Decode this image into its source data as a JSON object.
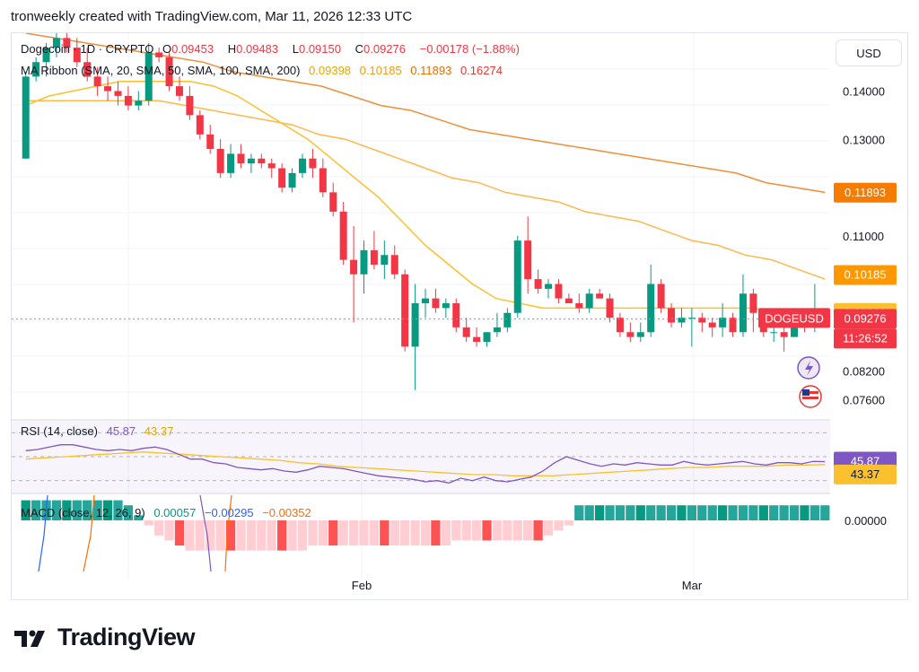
{
  "header": "tronweekly created with TradingView.com, Mar 11, 2026 12:33 UTC",
  "legend": {
    "symbol": "Dogecoin · 1D · CRYPTO",
    "o_label": "O",
    "o": "0.09453",
    "h_label": "H",
    "h": "0.09483",
    "l_label": "L",
    "l": "0.09150",
    "c_label": "C",
    "c": "0.09276",
    "change": "−0.00178 (−1.88%)",
    "ma_title": "MA Ribbon (SMA, 20, SMA, 50, SMA, 100, SMA, 200)",
    "ma_values": [
      "0.09398",
      "0.10185",
      "0.11893",
      "0.16274"
    ],
    "rsi_title": "RSI (14, close)",
    "rsi_values": [
      "45.87",
      "43.37"
    ],
    "macd_title": "MACD (close, 12, 26, 9)",
    "macd_values": [
      "0.00057",
      "−0.00295",
      "−0.00352"
    ]
  },
  "currency": "USD",
  "axis": {
    "price_ticks": [
      "0.14000",
      "0.13000",
      "0.11000",
      "0.08200",
      "0.07600"
    ],
    "badges": [
      {
        "text": "0.11893",
        "color": "#f57c00"
      },
      {
        "text": "0.10185",
        "color": "#ff9800"
      },
      {
        "text": "0.09398",
        "color": "#fbc02d"
      },
      {
        "text": "0.09276",
        "color": "#f23645"
      },
      {
        "text": "11:26:52",
        "color": "#f23645"
      }
    ],
    "symbol_tag": "DOGEUSD",
    "rsi_badges": [
      {
        "text": "45.87",
        "color": "#7e57c2"
      },
      {
        "text": "43.37",
        "color": "#fbc02d"
      }
    ],
    "macd_tick": "0.00000",
    "x_labels": [
      "Feb",
      "Mar"
    ]
  },
  "brand": "TradingView",
  "colors": {
    "up": "#089981",
    "down": "#f23645",
    "sma20": "#fbc02d",
    "sma50": "#ffb74d",
    "sma100": "#ef8f3a",
    "rsi": "#7e57c2",
    "rsi_ma": "#fbc02d"
  },
  "chart_data": {
    "type": "candlestick",
    "ylim": [
      0.072,
      0.152
    ],
    "candles": [
      [
        0.126,
        0.144,
        0.126,
        0.143
      ],
      [
        0.143,
        0.147,
        0.142,
        0.146
      ],
      [
        0.146,
        0.15,
        0.143,
        0.149
      ],
      [
        0.149,
        0.152,
        0.147,
        0.151
      ],
      [
        0.151,
        0.152,
        0.148,
        0.149
      ],
      [
        0.149,
        0.151,
        0.145,
        0.146
      ],
      [
        0.146,
        0.149,
        0.142,
        0.143
      ],
      [
        0.143,
        0.145,
        0.139,
        0.141
      ],
      [
        0.141,
        0.143,
        0.138,
        0.14
      ],
      [
        0.14,
        0.142,
        0.137,
        0.139
      ],
      [
        0.139,
        0.141,
        0.136,
        0.137
      ],
      [
        0.137,
        0.14,
        0.136,
        0.138
      ],
      [
        0.138,
        0.15,
        0.137,
        0.148
      ],
      [
        0.148,
        0.149,
        0.146,
        0.147
      ],
      [
        0.147,
        0.148,
        0.14,
        0.141
      ],
      [
        0.141,
        0.143,
        0.138,
        0.139
      ],
      [
        0.139,
        0.141,
        0.134,
        0.135
      ],
      [
        0.135,
        0.136,
        0.13,
        0.131
      ],
      [
        0.131,
        0.133,
        0.127,
        0.128
      ],
      [
        0.128,
        0.13,
        0.122,
        0.123
      ],
      [
        0.123,
        0.129,
        0.122,
        0.127
      ],
      [
        0.127,
        0.129,
        0.124,
        0.125
      ],
      [
        0.125,
        0.127,
        0.123,
        0.126
      ],
      [
        0.126,
        0.127,
        0.124,
        0.125
      ],
      [
        0.125,
        0.126,
        0.122,
        0.124
      ],
      [
        0.124,
        0.125,
        0.119,
        0.12
      ],
      [
        0.12,
        0.124,
        0.119,
        0.123
      ],
      [
        0.123,
        0.127,
        0.122,
        0.126
      ],
      [
        0.126,
        0.128,
        0.122,
        0.124
      ],
      [
        0.124,
        0.126,
        0.118,
        0.119
      ],
      [
        0.119,
        0.121,
        0.114,
        0.115
      ],
      [
        0.115,
        0.117,
        0.104,
        0.105
      ],
      [
        0.105,
        0.112,
        0.092,
        0.102
      ],
      [
        0.102,
        0.109,
        0.098,
        0.107
      ],
      [
        0.107,
        0.111,
        0.103,
        0.104
      ],
      [
        0.104,
        0.109,
        0.101,
        0.106
      ],
      [
        0.106,
        0.108,
        0.101,
        0.102
      ],
      [
        0.102,
        0.103,
        0.086,
        0.087
      ],
      [
        0.087,
        0.1,
        0.078,
        0.096
      ],
      [
        0.096,
        0.099,
        0.093,
        0.097
      ],
      [
        0.097,
        0.099,
        0.094,
        0.095
      ],
      [
        0.095,
        0.097,
        0.093,
        0.096
      ],
      [
        0.096,
        0.097,
        0.09,
        0.091
      ],
      [
        0.091,
        0.093,
        0.088,
        0.089
      ],
      [
        0.089,
        0.091,
        0.087,
        0.088
      ],
      [
        0.088,
        0.09,
        0.087,
        0.09
      ],
      [
        0.09,
        0.094,
        0.089,
        0.091
      ],
      [
        0.091,
        0.095,
        0.09,
        0.094
      ],
      [
        0.094,
        0.11,
        0.093,
        0.109
      ],
      [
        0.109,
        0.114,
        0.098,
        0.101
      ],
      [
        0.101,
        0.103,
        0.098,
        0.099
      ],
      [
        0.099,
        0.101,
        0.097,
        0.1
      ],
      [
        0.1,
        0.101,
        0.096,
        0.097
      ],
      [
        0.097,
        0.098,
        0.096,
        0.096
      ],
      [
        0.096,
        0.098,
        0.094,
        0.095
      ],
      [
        0.095,
        0.099,
        0.094,
        0.098
      ],
      [
        0.098,
        0.099,
        0.097,
        0.097
      ],
      [
        0.097,
        0.098,
        0.092,
        0.093
      ],
      [
        0.093,
        0.094,
        0.089,
        0.09
      ],
      [
        0.09,
        0.092,
        0.088,
        0.089
      ],
      [
        0.089,
        0.092,
        0.088,
        0.09
      ],
      [
        0.09,
        0.104,
        0.089,
        0.1
      ],
      [
        0.1,
        0.101,
        0.094,
        0.095
      ],
      [
        0.095,
        0.096,
        0.091,
        0.092
      ],
      [
        0.092,
        0.095,
        0.091,
        0.093
      ],
      [
        0.093,
        0.095,
        0.087,
        0.093
      ],
      [
        0.093,
        0.094,
        0.09,
        0.092
      ],
      [
        0.092,
        0.093,
        0.089,
        0.091
      ],
      [
        0.091,
        0.096,
        0.089,
        0.093
      ],
      [
        0.093,
        0.094,
        0.089,
        0.09
      ],
      [
        0.09,
        0.102,
        0.089,
        0.098
      ],
      [
        0.098,
        0.099,
        0.09,
        0.094
      ],
      [
        0.094,
        0.095,
        0.089,
        0.09
      ],
      [
        0.09,
        0.091,
        0.088,
        0.09
      ],
      [
        0.09,
        0.091,
        0.086,
        0.089
      ],
      [
        0.089,
        0.092,
        0.089,
        0.092
      ],
      [
        0.092,
        0.093,
        0.09,
        0.091
      ],
      [
        0.091,
        0.1,
        0.09,
        0.092
      ],
      [
        0.09453,
        0.09483,
        0.0915,
        0.09276
      ]
    ],
    "sma20": [
      0.137,
      0.139,
      0.14,
      0.141,
      0.142,
      0.142,
      0.142,
      0.142,
      0.141,
      0.139,
      0.136,
      0.133,
      0.13,
      0.126,
      0.122,
      0.118,
      0.113,
      0.108,
      0.104,
      0.1,
      0.097,
      0.096,
      0.095,
      0.095,
      0.095,
      0.095,
      0.095,
      0.095,
      0.095,
      0.095,
      0.095,
      0.095,
      0.094,
      0.094,
      0.094
    ],
    "sma50": [
      0.138,
      0.138,
      0.138,
      0.138,
      0.138,
      0.138,
      0.137,
      0.136,
      0.135,
      0.134,
      0.133,
      0.131,
      0.13,
      0.128,
      0.126,
      0.124,
      0.122,
      0.121,
      0.119,
      0.118,
      0.117,
      0.115,
      0.114,
      0.113,
      0.111,
      0.109,
      0.108,
      0.106,
      0.105,
      0.103,
      0.101
    ],
    "sma100": [
      0.152,
      0.151,
      0.15,
      0.149,
      0.148,
      0.147,
      0.146,
      0.144,
      0.143,
      0.142,
      0.141,
      0.139,
      0.137,
      0.136,
      0.134,
      0.132,
      0.131,
      0.13,
      0.129,
      0.128,
      0.127,
      0.126,
      0.125,
      0.124,
      0.123,
      0.121,
      0.12,
      0.119
    ],
    "rsi": [
      55,
      56,
      58,
      60,
      60,
      58,
      56,
      55,
      56,
      55,
      57,
      58,
      56,
      52,
      48,
      48,
      45,
      44,
      41,
      40,
      39,
      40,
      38,
      37,
      39,
      42,
      41,
      40,
      38,
      36,
      34,
      33,
      32,
      31,
      29,
      30,
      28,
      32,
      30,
      33,
      30,
      29,
      31,
      33,
      38,
      45,
      50,
      47,
      44,
      42,
      44,
      43,
      45,
      44,
      43,
      43,
      46,
      44,
      43,
      44,
      45,
      46,
      44,
      43,
      45,
      45,
      44,
      46,
      45.87
    ],
    "rsi_ma": [
      48,
      49,
      50,
      51,
      52,
      53,
      54,
      53,
      52,
      51,
      50,
      49,
      48,
      47,
      45,
      44,
      42,
      41,
      40,
      39,
      38,
      37,
      36,
      35,
      35,
      34,
      34,
      34,
      35,
      36,
      37,
      38,
      39,
      40,
      41,
      41,
      42,
      42,
      42,
      43,
      43,
      43.37
    ],
    "macd_hist": [
      0.004,
      0.004,
      0.004,
      0.004,
      0.004,
      0.004,
      0.004,
      0.004,
      0.004,
      0.004,
      0.003,
      0.001,
      -0.001,
      -0.003,
      -0.004,
      -0.005,
      -0.006,
      -0.006,
      -0.006,
      -0.006,
      -0.006,
      -0.006,
      -0.006,
      -0.006,
      -0.006,
      -0.006,
      -0.006,
      -0.006,
      -0.005,
      -0.005,
      -0.005,
      -0.005,
      -0.005,
      -0.005,
      -0.005,
      -0.005,
      -0.005,
      -0.005,
      -0.005,
      -0.005,
      -0.005,
      -0.005,
      -0.004,
      -0.004,
      -0.004,
      -0.004,
      -0.004,
      -0.004,
      -0.004,
      -0.004,
      -0.004,
      -0.003,
      -0.002,
      -0.001,
      0.003,
      0.003,
      0.003,
      0.003,
      0.003,
      0.003,
      0.003,
      0.003,
      0.003,
      0.003,
      0.003,
      0.003,
      0.003,
      0.003,
      0.003,
      0.003,
      0.003,
      0.003,
      0.003,
      0.003,
      0.003,
      0.003,
      0.003,
      0.003,
      0.003
    ]
  }
}
